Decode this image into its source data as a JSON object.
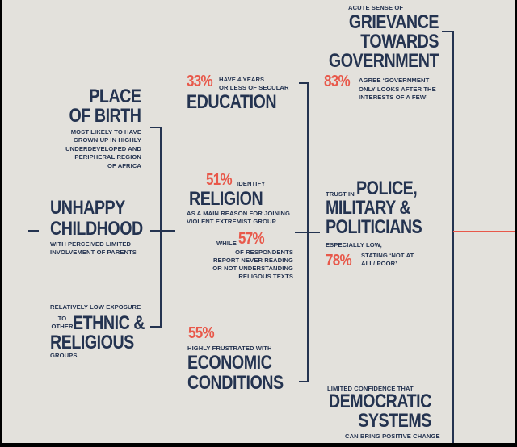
{
  "colors": {
    "navy": "#243350",
    "accent": "#e8584a",
    "background": "#e3e1dc"
  },
  "place_of_birth": {
    "title_1": "PLACE",
    "title_2": "OF BIRTH",
    "desc": [
      "MOST LIKELY TO HAVE",
      "GROWN UP IN HIGHLY",
      "UNDERDEVELOPED AND",
      "PERIPHERAL REGION",
      "OF AFRICA"
    ]
  },
  "unhappy_childhood": {
    "title_1": "UNHAPPY",
    "title_2": "CHILDHOOD",
    "desc": [
      "WITH PERCEIVED LIMITED",
      "INVOLVEMENT OF PARENTS"
    ]
  },
  "ethnic_religious": {
    "intro_1": "RELATIVELY LOW EXPOSURE",
    "intro_2": "TO",
    "intro_3": "OTHER",
    "title_1": "ETHNIC &",
    "title_2": "RELIGIOUS",
    "tail": "GROUPS"
  },
  "education": {
    "pct": "33%",
    "desc": [
      "HAVE 4 YEARS",
      "OR LESS OF SECULAR"
    ],
    "title": "EDUCATION"
  },
  "religion": {
    "pct": "51%",
    "desc_1": "IDENTIFY",
    "title": "RELIGION",
    "desc": [
      "AS A MAIN REASON FOR JOINING",
      "VIOLENT EXTREMIST GROUP"
    ],
    "while": "WHILE",
    "pct_2": "57%",
    "desc_2": [
      "OF RESPONDENTS",
      "REPORT NEVER READING",
      "OR NOT UNDERSTANDING",
      "RELIGOUS TEXTS"
    ]
  },
  "economic": {
    "pct": "55%",
    "desc": "HIGHLY FRUSTRATED WITH",
    "title_1": "ECONOMIC",
    "title_2": "CONDITIONS"
  },
  "grievance": {
    "intro": "ACUTE SENSE OF",
    "title_1": "GRIEVANCE",
    "title_2": "TOWARDS",
    "title_3": "GOVERNMENT",
    "pct": "83%",
    "desc": [
      "AGREE ‘GOVERNMENT",
      "ONLY LOOKS AFTER THE",
      "INTERESTS OF A FEW’"
    ]
  },
  "trust": {
    "intro": "TRUST IN",
    "title_1": "POLICE,",
    "title_2": "MILITARY &",
    "title_3": "POLITICIANS",
    "low": "ESPECIALLY LOW,",
    "pct": "78%",
    "desc": [
      "STATING ‘NOT AT",
      "ALL/ POOR’"
    ]
  },
  "democratic": {
    "intro": "LIMITED CONFIDENCE THAT",
    "title_1": "DEMOCRATIC",
    "title_2": "SYSTEMS",
    "tail": "CAN BRING POSITIVE CHANGE"
  }
}
